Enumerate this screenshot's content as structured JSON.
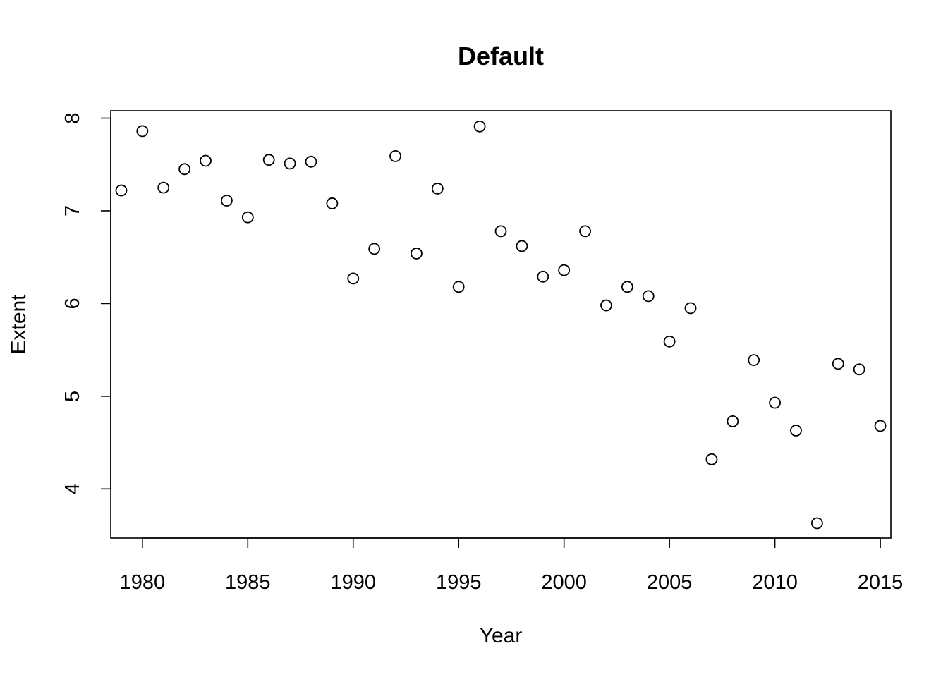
{
  "chart_data": {
    "type": "scatter",
    "title": "Default",
    "xlabel": "Year",
    "ylabel": "Extent",
    "xlim": [
      1978.5,
      2015.5
    ],
    "ylim": [
      3.47,
      8.08
    ],
    "xticks": [
      1980,
      1985,
      1990,
      1995,
      2000,
      2005,
      2010,
      2015
    ],
    "yticks": [
      4,
      5,
      6,
      7,
      8
    ],
    "grid": false,
    "legend": "none",
    "x": [
      1979,
      1980,
      1981,
      1982,
      1983,
      1984,
      1985,
      1986,
      1987,
      1988,
      1989,
      1990,
      1991,
      1992,
      1993,
      1994,
      1995,
      1996,
      1997,
      1998,
      1999,
      2000,
      2001,
      2002,
      2003,
      2004,
      2005,
      2006,
      2007,
      2008,
      2009,
      2010,
      2011,
      2012,
      2013,
      2014,
      2015
    ],
    "y": [
      7.22,
      7.86,
      7.25,
      7.45,
      7.54,
      7.11,
      6.93,
      7.55,
      7.51,
      7.53,
      7.08,
      6.27,
      6.59,
      7.59,
      6.54,
      7.24,
      6.18,
      7.91,
      6.78,
      6.62,
      6.29,
      6.36,
      6.78,
      5.98,
      6.18,
      6.08,
      5.59,
      5.95,
      4.32,
      4.73,
      5.39,
      4.93,
      4.63,
      3.63,
      5.35,
      5.29,
      4.68
    ]
  }
}
